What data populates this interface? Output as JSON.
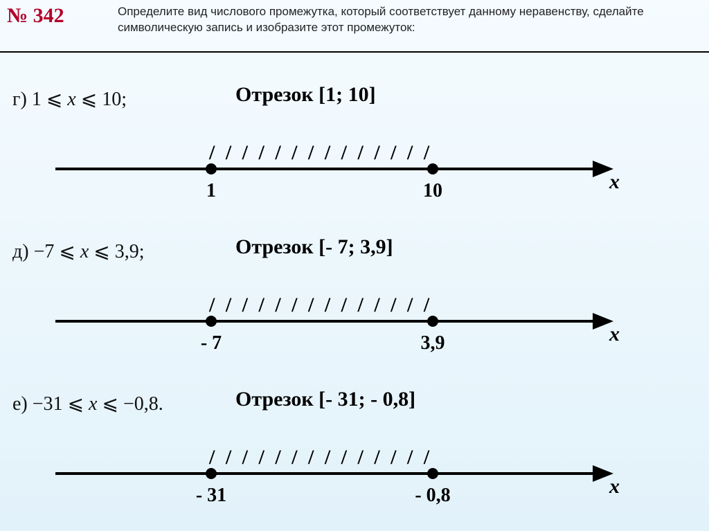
{
  "problem_number": "№ 342",
  "task_text": "Определите вид числового промежутка, который соответствует данному неравенству, сделайте символическую запись и изобразите этот промежуток:",
  "axis_label": "x",
  "hatch_text": "/ / / / / / / / / / / / / /",
  "parts": {
    "g": {
      "letter": "г)",
      "ineq_left": "1",
      "ineq_right": "10;",
      "title": "Отрезок [1; 10]",
      "label_a": "1",
      "label_b": "10"
    },
    "d": {
      "letter": "д)",
      "ineq_left": "−7",
      "ineq_right": "3,9;",
      "title": "Отрезок [- 7; 3,9]",
      "label_a": "- 7",
      "label_b": "3,9"
    },
    "e": {
      "letter": "е)",
      "ineq_left": "−31",
      "ineq_right": "−0,8.",
      "title": "Отрезок [- 31; - 0,8]",
      "label_a": "- 31",
      "label_b": "- 0,8"
    }
  }
}
